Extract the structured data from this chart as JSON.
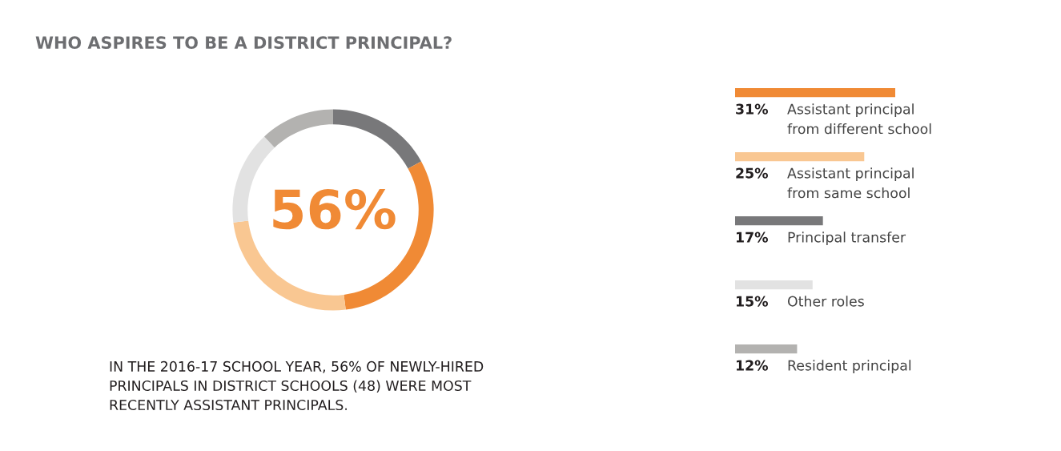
{
  "chart_data": [
    {
      "type": "donut",
      "title": "WHO ASPIRES TO BE A DISTRICT PRINCIPAL?",
      "categories": [
        null,
        null,
        null,
        null,
        null
      ],
      "values": [
        17,
        31,
        25,
        15,
        12
      ],
      "colors": [
        "#78787a",
        "#f08a35",
        "#f9c792",
        "#e2e2e2",
        "#b3b2b0"
      ],
      "annotations": [
        "56%",
        "IN THE 2016-17 SCHOOL YEAR, 56% OF NEWLY-HIRED\nPRINCIPALS IN DISTRICT SCHOOLS (48) WERE MOST\nRECENTLY ASSISTANT PRINCIPALS."
      ]
    },
    {
      "type": "bar",
      "orientation": "horizontal",
      "categories": [
        "Assistant principal\nfrom different school",
        "Assistant principal\nfrom same school",
        "Principal transfer",
        "Other roles",
        "Resident principal"
      ],
      "values": [
        31,
        25,
        17,
        15,
        12
      ],
      "colors": [
        "#f08a35",
        "#f9c792",
        "#78787a",
        "#e2e2e2",
        "#b3b2b0"
      ],
      "value_labels": [
        "31%",
        "25%",
        "17%",
        "15%",
        "12%"
      ]
    }
  ]
}
